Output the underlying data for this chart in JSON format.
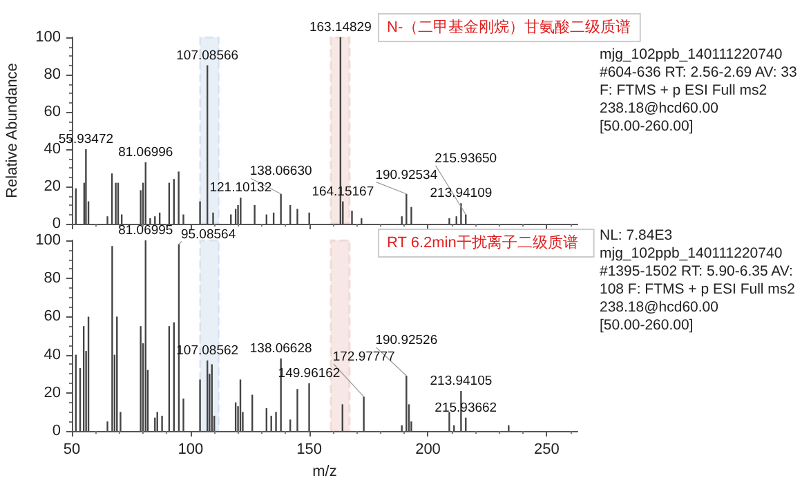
{
  "chart_data": [
    {
      "type": "bar",
      "ylabel": "Relative Abundance",
      "xlim": [
        50,
        263
      ],
      "xticks": [
        50,
        100,
        150,
        200,
        250
      ],
      "ylim": [
        0,
        100
      ],
      "yticks": [
        0,
        20,
        40,
        60,
        80,
        100
      ],
      "tick_labels": "y",
      "x": [
        51.7,
        55.2,
        55.93472,
        57,
        65,
        66.9,
        68.5,
        69.5,
        71,
        79,
        80,
        81.06996,
        83,
        85,
        87,
        91,
        93,
        95,
        97,
        104,
        107.08566,
        109.5,
        117,
        119,
        120,
        121.10132,
        127,
        132,
        135,
        138.0663,
        142,
        145,
        150,
        163.14829,
        164.15167,
        168,
        172,
        189,
        190.92534,
        193,
        209,
        212,
        213.94109,
        215.9365
      ],
      "series": [
        {
          "color": "#444444",
          "values": [
            19,
            22,
            40,
            12,
            4,
            27,
            22,
            22,
            5,
            18,
            22,
            33,
            3,
            4,
            6,
            22,
            24,
            28,
            5,
            12,
            85,
            6,
            5,
            8,
            10,
            14,
            10,
            5,
            6,
            16,
            10,
            8,
            6,
            100,
            12,
            7,
            3,
            4,
            16,
            9,
            3,
            4,
            11,
            5
          ]
        }
      ],
      "bands": [
        {
          "axis": "x",
          "from": 104,
          "to": 112,
          "color": "#4a7fc1"
        },
        {
          "axis": "x",
          "from": 159,
          "to": 167,
          "color": "#c0392b"
        }
      ],
      "annotations": [
        {
          "text": "55.93472",
          "x": 55.93472,
          "y": 40
        },
        {
          "text": "81.06996",
          "x": 81.06996,
          "y": 33
        },
        {
          "text": "107.08566",
          "x": 107.08566,
          "y": 85
        },
        {
          "text": "121.10132",
          "x": 121.10132,
          "y": 14
        },
        {
          "text": "138.06630",
          "x": 138.0663,
          "y": 16
        },
        {
          "text": "163.14829",
          "x": 163.14829,
          "y": 100
        },
        {
          "text": "164.15167",
          "x": 164.15167,
          "y": 12
        },
        {
          "text": "190.92534",
          "x": 190.92534,
          "y": 16
        },
        {
          "text": "213.94109",
          "x": 213.94109,
          "y": 11
        },
        {
          "text": "215.93650",
          "x": 215.9365,
          "y": 5
        },
        "N-（二甲基金刚烷）甘氨酸二级质谱",
        "mjg_102ppb_140111220740 #604-636 RT: 2.56-2.69 AV: 33 F: FTMS + p ESI Full ms2 238.18@hcd60.00 [50.00-260.00]"
      ]
    },
    {
      "type": "bar",
      "xlabel": "m/z",
      "xlim": [
        50,
        263
      ],
      "xticks": [
        50,
        100,
        150,
        200,
        250
      ],
      "ylim": [
        0,
        100
      ],
      "yticks": [
        0,
        20,
        40,
        60,
        80,
        100
      ],
      "x": [
        51.7,
        53.5,
        55,
        56,
        57,
        65,
        67,
        68,
        69,
        70.5,
        79,
        80,
        81.06995,
        82,
        85,
        86,
        88,
        91,
        93,
        95.08564,
        97,
        104,
        107.08562,
        108,
        109,
        110,
        119,
        120,
        121,
        122,
        126,
        132,
        134,
        136,
        138.06628,
        142,
        145,
        149.96162,
        164,
        172.97777,
        189,
        190.92526,
        192,
        193,
        209,
        211,
        213.94105,
        215.93662,
        234
      ],
      "series": [
        {
          "color": "#444444",
          "values": [
            40,
            33,
            55,
            42,
            60,
            5,
            97,
            40,
            60,
            10,
            55,
            46,
            100,
            32,
            7,
            10,
            8,
            55,
            57,
            98,
            17,
            27,
            37,
            30,
            35,
            8,
            15,
            13,
            27,
            10,
            19,
            12,
            8,
            10,
            38,
            6,
            22,
            25,
            14,
            18,
            3,
            29,
            14,
            5,
            10,
            3,
            21,
            7,
            3
          ]
        }
      ],
      "bands": [
        {
          "axis": "x",
          "from": 104,
          "to": 112,
          "color": "#4a7fc1"
        },
        {
          "axis": "x",
          "from": 159,
          "to": 167,
          "color": "#c0392b"
        }
      ],
      "annotations": [
        {
          "text": "81.06995",
          "x": 81.06995,
          "y": 100
        },
        {
          "text": "95.08564",
          "x": 95.08564,
          "y": 98
        },
        {
          "text": "107.08562",
          "x": 107.08562,
          "y": 37
        },
        {
          "text": "138.06628",
          "x": 138.06628,
          "y": 38
        },
        {
          "text": "149.96162",
          "x": 149.96162,
          "y": 25
        },
        {
          "text": "172.97777",
          "x": 172.97777,
          "y": 18
        },
        {
          "text": "190.92526",
          "x": 190.92526,
          "y": 29
        },
        {
          "text": "213.94105",
          "x": 213.94105,
          "y": 21
        },
        {
          "text": "215.93662",
          "x": 215.93662,
          "y": 7
        },
        "RT 6.2min干扰离子二级质谱",
        "NL: 7.84E3 mjg_102ppb_140111220740 #1395-1502 RT: 5.90-6.35 AV: 108 F: FTMS + p ESI Full ms2 238.18@hcd60.00 [50.00-260.00]"
      ]
    }
  ]
}
